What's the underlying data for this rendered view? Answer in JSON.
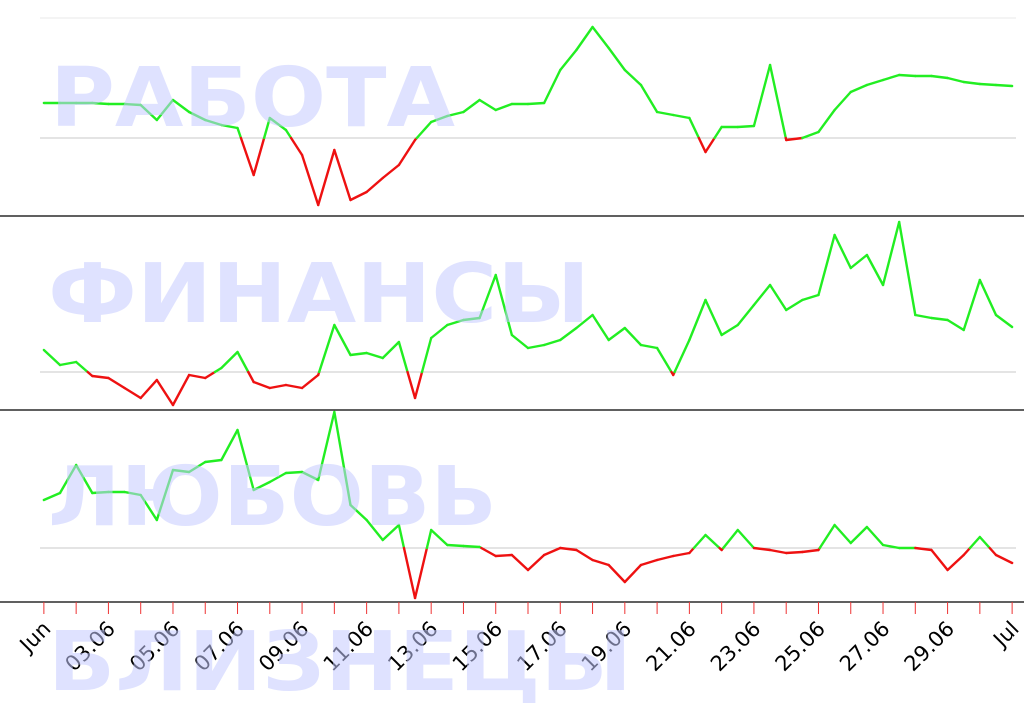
{
  "chart_data": {
    "type": "line",
    "color_above": "#22ee22",
    "color_below": "#ee1111",
    "xlim": [
      0.88,
      31.12
    ],
    "x": [
      1,
      1.5,
      2,
      2.5,
      3,
      3.5,
      4,
      4.5,
      5,
      5.5,
      6,
      6.5,
      7,
      7.5,
      8,
      8.5,
      9,
      9.5,
      10,
      10.5,
      11,
      11.5,
      12,
      12.5,
      13,
      13.5,
      14,
      14.5,
      15,
      15.5,
      16,
      16.5,
      17,
      17.5,
      18,
      18.5,
      19,
      19.5,
      20,
      20.5,
      21,
      21.5,
      22,
      22.5,
      23,
      23.5,
      24,
      24.5,
      25,
      25.5,
      26,
      26.5,
      27,
      27.5,
      28,
      28.5,
      29,
      29.5,
      30,
      30.5,
      31
    ],
    "xticks": [
      {
        "value": 1,
        "label": "Jun"
      },
      {
        "value": 3,
        "label": "03.06"
      },
      {
        "value": 5,
        "label": "05.06"
      },
      {
        "value": 7,
        "label": "07.06"
      },
      {
        "value": 9,
        "label": "09.06"
      },
      {
        "value": 11,
        "label": "11.06"
      },
      {
        "value": 13,
        "label": "13.06"
      },
      {
        "value": 15,
        "label": "15.06"
      },
      {
        "value": 17,
        "label": "17.06"
      },
      {
        "value": 19,
        "label": "19.06"
      },
      {
        "value": 21,
        "label": "21.06"
      },
      {
        "value": 23,
        "label": "23.06"
      },
      {
        "value": 25,
        "label": "25.06"
      },
      {
        "value": 27,
        "label": "27.06"
      },
      {
        "value": 29,
        "label": "29.06"
      },
      {
        "value": 31,
        "label": "Jul"
      }
    ],
    "xminorticks": [
      1,
      2,
      3,
      4,
      5,
      6,
      7,
      8,
      9,
      10,
      11,
      12,
      13,
      14,
      15,
      16,
      17,
      18,
      19,
      20,
      21,
      22,
      23,
      24,
      25,
      26,
      27,
      28,
      29,
      30,
      31
    ],
    "watermarks": [
      "РАБОТА",
      "ФИНАНСЫ",
      "ЛЮБОВЬ",
      "БЛИЗНЕЦЫ"
    ],
    "panels": [
      {
        "ylim": [
          -78,
          120
        ],
        "baseline": 0,
        "values": [
          35,
          35,
          35,
          35,
          34,
          34,
          33,
          18,
          38,
          26,
          18,
          13,
          10,
          -37,
          20,
          8,
          -17,
          -67,
          -12,
          -62,
          -54,
          -40,
          -27,
          -2,
          16,
          22,
          26,
          38,
          28,
          34,
          34,
          35,
          68,
          88,
          111,
          90,
          68,
          53,
          26,
          23,
          20,
          -14,
          11,
          11,
          12,
          73,
          -2,
          0,
          6,
          28,
          46,
          53,
          58,
          63,
          62,
          62,
          60,
          56,
          54,
          53,
          52
        ]
      },
      {
        "ylim": [
          -38,
          156
        ],
        "baseline": 0,
        "values": [
          22,
          7,
          10,
          -4,
          -6,
          -16,
          -26,
          -8,
          -33,
          -3,
          -6,
          4,
          20,
          -10,
          -16,
          -13,
          -16,
          -3,
          47,
          17,
          19,
          14,
          30,
          -26,
          34,
          47,
          52,
          54,
          97,
          37,
          24,
          27,
          32,
          44,
          57,
          32,
          44,
          27,
          24,
          -3,
          32,
          72,
          37,
          47,
          67,
          87,
          62,
          72,
          77,
          137,
          104,
          117,
          87,
          150,
          57,
          54,
          52,
          42,
          92,
          57,
          45
        ]
      },
      {
        "ylim": [
          -54,
          138
        ],
        "baseline": 0,
        "values": [
          48,
          55,
          83,
          55,
          56,
          56,
          53,
          28,
          78,
          76,
          86,
          88,
          118,
          58,
          66,
          75,
          76,
          68,
          136,
          43,
          28,
          8,
          23,
          -50,
          18,
          3,
          2,
          1,
          -8,
          -7,
          -22,
          -7,
          0,
          -2,
          -12,
          -17,
          -34,
          -17,
          -12,
          -8,
          -5,
          13,
          -2,
          18,
          0,
          -2,
          -5,
          -4,
          -2,
          23,
          5,
          21,
          3,
          0,
          0,
          -2,
          -22,
          -7,
          11,
          -7,
          -15
        ]
      }
    ]
  }
}
